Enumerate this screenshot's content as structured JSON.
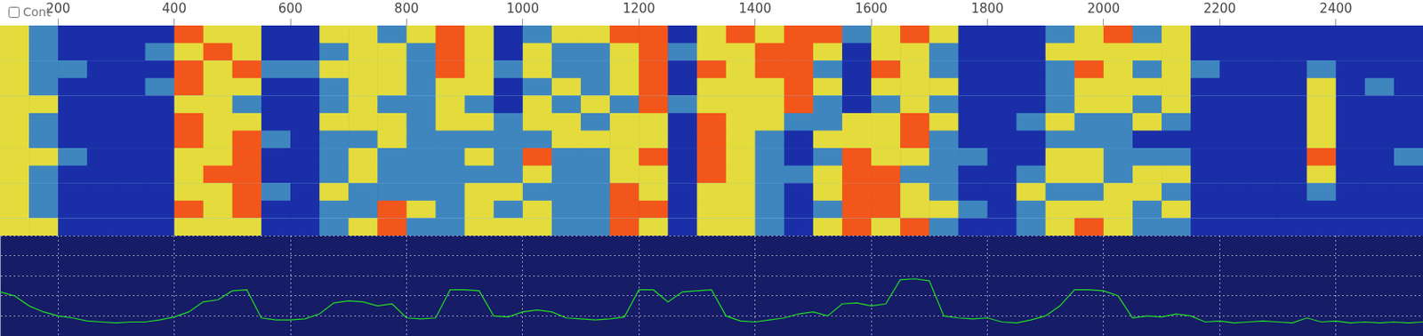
{
  "chart_data": {
    "type": "waterfall",
    "xlim": [
      100,
      2550
    ],
    "xticks": [
      200,
      400,
      600,
      800,
      1000,
      1200,
      1400,
      1600,
      1800,
      2000,
      2200,
      2400
    ],
    "grid": true,
    "tick_labels": "x",
    "waterfall": {
      "x_bins": [
        100,
        150,
        200,
        250,
        300,
        350,
        400,
        450,
        500,
        550,
        600,
        650,
        700,
        750,
        800,
        850,
        900,
        950,
        1000,
        1050,
        1100,
        1150,
        1200,
        1250,
        1300,
        1350,
        1400,
        1450,
        1500,
        1550,
        1600,
        1650,
        1700,
        1750,
        1800,
        1850,
        1900,
        1950,
        2000,
        2050,
        2100,
        2150,
        2200,
        2250,
        2300,
        2350,
        2400,
        2450,
        2500,
        2550
      ],
      "cells": [
        [
          2,
          1,
          0,
          0,
          0,
          0,
          3,
          2,
          2,
          0,
          0,
          2,
          2,
          1,
          2,
          3,
          2,
          0,
          1,
          2,
          2,
          3,
          3,
          0,
          2,
          3,
          2,
          3,
          3,
          1,
          2,
          3,
          2,
          0,
          0,
          0,
          1,
          2,
          3,
          1,
          2,
          0,
          0,
          0,
          0,
          0,
          0,
          0,
          0
        ],
        [
          2,
          1,
          0,
          0,
          0,
          1,
          2,
          3,
          2,
          0,
          0,
          1,
          2,
          2,
          1,
          3,
          2,
          0,
          2,
          1,
          1,
          2,
          3,
          1,
          2,
          2,
          3,
          3,
          2,
          0,
          2,
          2,
          1,
          0,
          0,
          0,
          2,
          2,
          2,
          2,
          2,
          0,
          0,
          0,
          0,
          0,
          0,
          0,
          0
        ],
        [
          2,
          1,
          1,
          0,
          0,
          0,
          3,
          2,
          3,
          1,
          1,
          2,
          2,
          2,
          1,
          3,
          2,
          1,
          2,
          1,
          1,
          2,
          3,
          0,
          3,
          2,
          3,
          3,
          1,
          0,
          3,
          2,
          1,
          0,
          0,
          0,
          1,
          3,
          2,
          1,
          2,
          1,
          0,
          0,
          0,
          1,
          0,
          0,
          0
        ],
        [
          2,
          1,
          0,
          0,
          0,
          1,
          3,
          2,
          2,
          0,
          0,
          1,
          2,
          2,
          1,
          2,
          2,
          0,
          1,
          2,
          1,
          2,
          3,
          0,
          2,
          2,
          2,
          3,
          2,
          0,
          2,
          2,
          2,
          0,
          0,
          0,
          1,
          2,
          2,
          2,
          2,
          0,
          0,
          0,
          0,
          2,
          0,
          1,
          0
        ],
        [
          2,
          2,
          0,
          0,
          0,
          0,
          2,
          2,
          1,
          0,
          0,
          1,
          2,
          1,
          1,
          2,
          1,
          0,
          2,
          1,
          2,
          1,
          3,
          1,
          2,
          2,
          2,
          3,
          1,
          0,
          1,
          2,
          1,
          0,
          0,
          0,
          1,
          2,
          2,
          1,
          2,
          0,
          0,
          0,
          0,
          2,
          0,
          0,
          0
        ],
        [
          2,
          1,
          0,
          0,
          0,
          0,
          3,
          2,
          2,
          0,
          0,
          2,
          2,
          2,
          1,
          2,
          2,
          1,
          2,
          2,
          1,
          2,
          2,
          0,
          3,
          2,
          2,
          1,
          1,
          2,
          2,
          3,
          2,
          0,
          0,
          1,
          2,
          1,
          1,
          2,
          1,
          0,
          0,
          0,
          0,
          2,
          0,
          0,
          0
        ],
        [
          2,
          1,
          0,
          0,
          0,
          0,
          3,
          2,
          3,
          1,
          0,
          1,
          1,
          2,
          1,
          1,
          1,
          1,
          1,
          2,
          2,
          2,
          2,
          0,
          3,
          2,
          1,
          0,
          2,
          2,
          2,
          3,
          1,
          0,
          0,
          0,
          1,
          1,
          1,
          0,
          0,
          0,
          0,
          0,
          0,
          2,
          0,
          0,
          0
        ],
        [
          2,
          2,
          1,
          0,
          0,
          0,
          2,
          2,
          3,
          0,
          0,
          1,
          2,
          1,
          1,
          1,
          2,
          1,
          3,
          1,
          1,
          2,
          3,
          0,
          3,
          2,
          1,
          0,
          1,
          3,
          2,
          2,
          1,
          1,
          0,
          0,
          2,
          2,
          1,
          1,
          1,
          0,
          0,
          0,
          0,
          3,
          0,
          0,
          1
        ],
        [
          2,
          1,
          0,
          0,
          0,
          0,
          2,
          3,
          3,
          0,
          0,
          1,
          2,
          1,
          1,
          1,
          1,
          1,
          2,
          1,
          1,
          2,
          2,
          0,
          3,
          2,
          1,
          1,
          2,
          3,
          3,
          1,
          1,
          0,
          0,
          1,
          2,
          2,
          1,
          2,
          2,
          0,
          0,
          0,
          0,
          2,
          0,
          0,
          0
        ],
        [
          2,
          1,
          0,
          0,
          0,
          0,
          2,
          2,
          3,
          1,
          0,
          2,
          1,
          1,
          1,
          1,
          2,
          2,
          1,
          1,
          1,
          3,
          2,
          0,
          2,
          2,
          1,
          0,
          2,
          3,
          3,
          2,
          1,
          0,
          0,
          2,
          1,
          1,
          2,
          2,
          1,
          0,
          0,
          0,
          0,
          1,
          0,
          0,
          0
        ],
        [
          2,
          1,
          0,
          0,
          0,
          0,
          3,
          2,
          3,
          0,
          0,
          1,
          1,
          3,
          2,
          1,
          2,
          1,
          2,
          1,
          1,
          3,
          3,
          0,
          2,
          2,
          1,
          0,
          1,
          3,
          3,
          2,
          2,
          1,
          0,
          1,
          2,
          2,
          2,
          1,
          2,
          0,
          0,
          0,
          0,
          0,
          0,
          0,
          0
        ],
        [
          2,
          2,
          0,
          0,
          0,
          0,
          2,
          2,
          2,
          0,
          0,
          1,
          2,
          3,
          1,
          1,
          2,
          2,
          2,
          1,
          1,
          3,
          2,
          0,
          2,
          2,
          1,
          0,
          2,
          3,
          2,
          3,
          1,
          0,
          0,
          1,
          2,
          3,
          2,
          1,
          1,
          0,
          0,
          0,
          0,
          0,
          0,
          0,
          0
        ]
      ]
    },
    "spectrum": {
      "type": "line",
      "color": "#22dd22",
      "x": [
        100,
        125,
        150,
        175,
        200,
        225,
        250,
        275,
        300,
        325,
        350,
        375,
        400,
        425,
        450,
        475,
        500,
        525,
        550,
        575,
        600,
        625,
        650,
        675,
        700,
        725,
        750,
        775,
        800,
        825,
        850,
        875,
        900,
        925,
        950,
        975,
        1000,
        1025,
        1050,
        1075,
        1100,
        1125,
        1150,
        1175,
        1200,
        1225,
        1250,
        1275,
        1300,
        1325,
        1350,
        1375,
        1400,
        1425,
        1450,
        1475,
        1500,
        1525,
        1550,
        1575,
        1600,
        1625,
        1650,
        1675,
        1700,
        1725,
        1750,
        1775,
        1800,
        1825,
        1850,
        1875,
        1900,
        1925,
        1950,
        1975,
        2000,
        2025,
        2050,
        2075,
        2100,
        2125,
        2150,
        2175,
        2200,
        2225,
        2250,
        2275,
        2300,
        2325,
        2350,
        2375,
        2400,
        2425,
        2450,
        2475,
        2500,
        2525,
        2550
      ],
      "values": [
        44,
        40,
        30,
        24,
        20,
        18,
        15,
        14,
        13,
        14,
        14,
        16,
        19,
        24,
        34,
        36,
        45,
        46,
        18,
        16,
        16,
        17,
        22,
        33,
        35,
        34,
        30,
        32,
        18,
        17,
        18,
        46,
        46,
        45,
        20,
        19,
        24,
        26,
        24,
        18,
        17,
        16,
        17,
        19,
        46,
        46,
        34,
        44,
        45,
        46,
        20,
        15,
        14,
        16,
        18,
        22,
        24,
        20,
        32,
        33,
        30,
        32,
        56,
        57,
        55,
        20,
        18,
        17,
        18,
        14,
        13,
        16,
        20,
        30,
        46,
        46,
        45,
        40,
        18,
        20,
        19,
        22,
        20,
        14,
        15,
        13,
        14,
        15,
        14,
        13,
        18,
        14,
        15,
        13,
        14,
        13,
        14,
        13,
        14
      ],
      "ylim": [
        0,
        100
      ],
      "yticks": [
        0,
        20,
        40,
        60,
        80,
        100
      ]
    }
  },
  "controls": {
    "checkbox": "Cont"
  }
}
